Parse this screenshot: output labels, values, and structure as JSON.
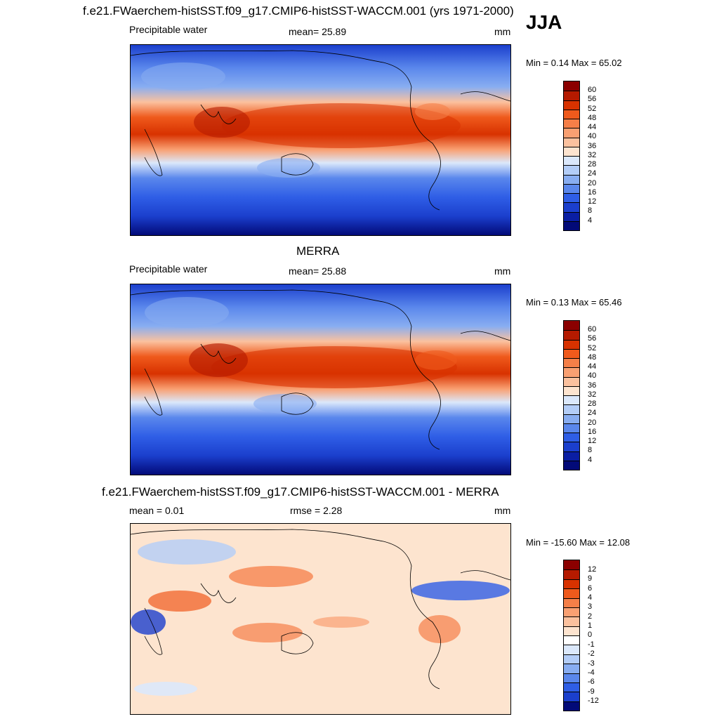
{
  "header": {
    "case_title": "f.e21.FWaerchem-histSST.f09_g17.CMIP6-histSST-WACCM.001 (yrs 1971-2000)",
    "season": "JJA"
  },
  "panels": [
    {
      "title": "",
      "variable": "Precipitable water",
      "stat": "mean=  25.89",
      "units": "mm",
      "minmax": "Min =   0.14 Max =  65.02"
    },
    {
      "title": "MERRA",
      "variable": "Precipitable water",
      "stat": "mean=  25.88",
      "units": "mm",
      "minmax": "Min =   0.13 Max =  65.46"
    },
    {
      "title": "f.e21.FWaerchem-histSST.f09_g17.CMIP6-histSST-WACCM.001 - MERRA",
      "variable": "mean =   0.01",
      "stat": "rmse =   2.28",
      "units": "mm",
      "minmax": "Min = -15.60 Max =  12.08"
    }
  ],
  "chart_data": [
    {
      "type": "heatmap",
      "title": "Precipitable water (model, JJA)",
      "units": "mm",
      "mean": 25.89,
      "min": 0.14,
      "max": 65.02,
      "colorbar_levels": [
        "60",
        "56",
        "52",
        "48",
        "44",
        "40",
        "36",
        "32",
        "28",
        "24",
        "20",
        "16",
        "12",
        "8",
        "4"
      ],
      "colorbar_colors": [
        "#8b0000",
        "#b51a00",
        "#d83200",
        "#ef5a1c",
        "#f57f48",
        "#f9a072",
        "#fbc19e",
        "#fde4cf",
        "#dbe8fb",
        "#b3cdf7",
        "#88adf1",
        "#5a87ec",
        "#2f5ee6",
        "#1b3fcd",
        "#0a1ea3",
        "#020a78"
      ]
    },
    {
      "type": "heatmap",
      "title": "Precipitable water (MERRA, JJA)",
      "units": "mm",
      "mean": 25.88,
      "min": 0.13,
      "max": 65.46,
      "colorbar_levels": [
        "60",
        "56",
        "52",
        "48",
        "44",
        "40",
        "36",
        "32",
        "28",
        "24",
        "20",
        "16",
        "12",
        "8",
        "4"
      ],
      "colorbar_colors": [
        "#8b0000",
        "#b51a00",
        "#d83200",
        "#ef5a1c",
        "#f57f48",
        "#f9a072",
        "#fbc19e",
        "#fde4cf",
        "#dbe8fb",
        "#b3cdf7",
        "#88adf1",
        "#5a87ec",
        "#2f5ee6",
        "#1b3fcd",
        "#0a1ea3",
        "#020a78"
      ]
    },
    {
      "type": "heatmap",
      "title": "Model - MERRA difference (JJA)",
      "units": "mm",
      "mean": 0.01,
      "rmse": 2.28,
      "min": -15.6,
      "max": 12.08,
      "colorbar_levels": [
        "12",
        "9",
        "6",
        "4",
        "3",
        "2",
        "1",
        "0",
        "-1",
        "-2",
        "-3",
        "-4",
        "-6",
        "-9",
        "-12"
      ],
      "colorbar_colors": [
        "#8b0000",
        "#b51a00",
        "#d83200",
        "#ef5a1c",
        "#f57f48",
        "#f9a072",
        "#fbc19e",
        "#fde4cf",
        "#ffffff",
        "#dbe8fb",
        "#b3cdf7",
        "#88adf1",
        "#5a87ec",
        "#2f5ee6",
        "#1b3fcd",
        "#020a78"
      ]
    }
  ]
}
